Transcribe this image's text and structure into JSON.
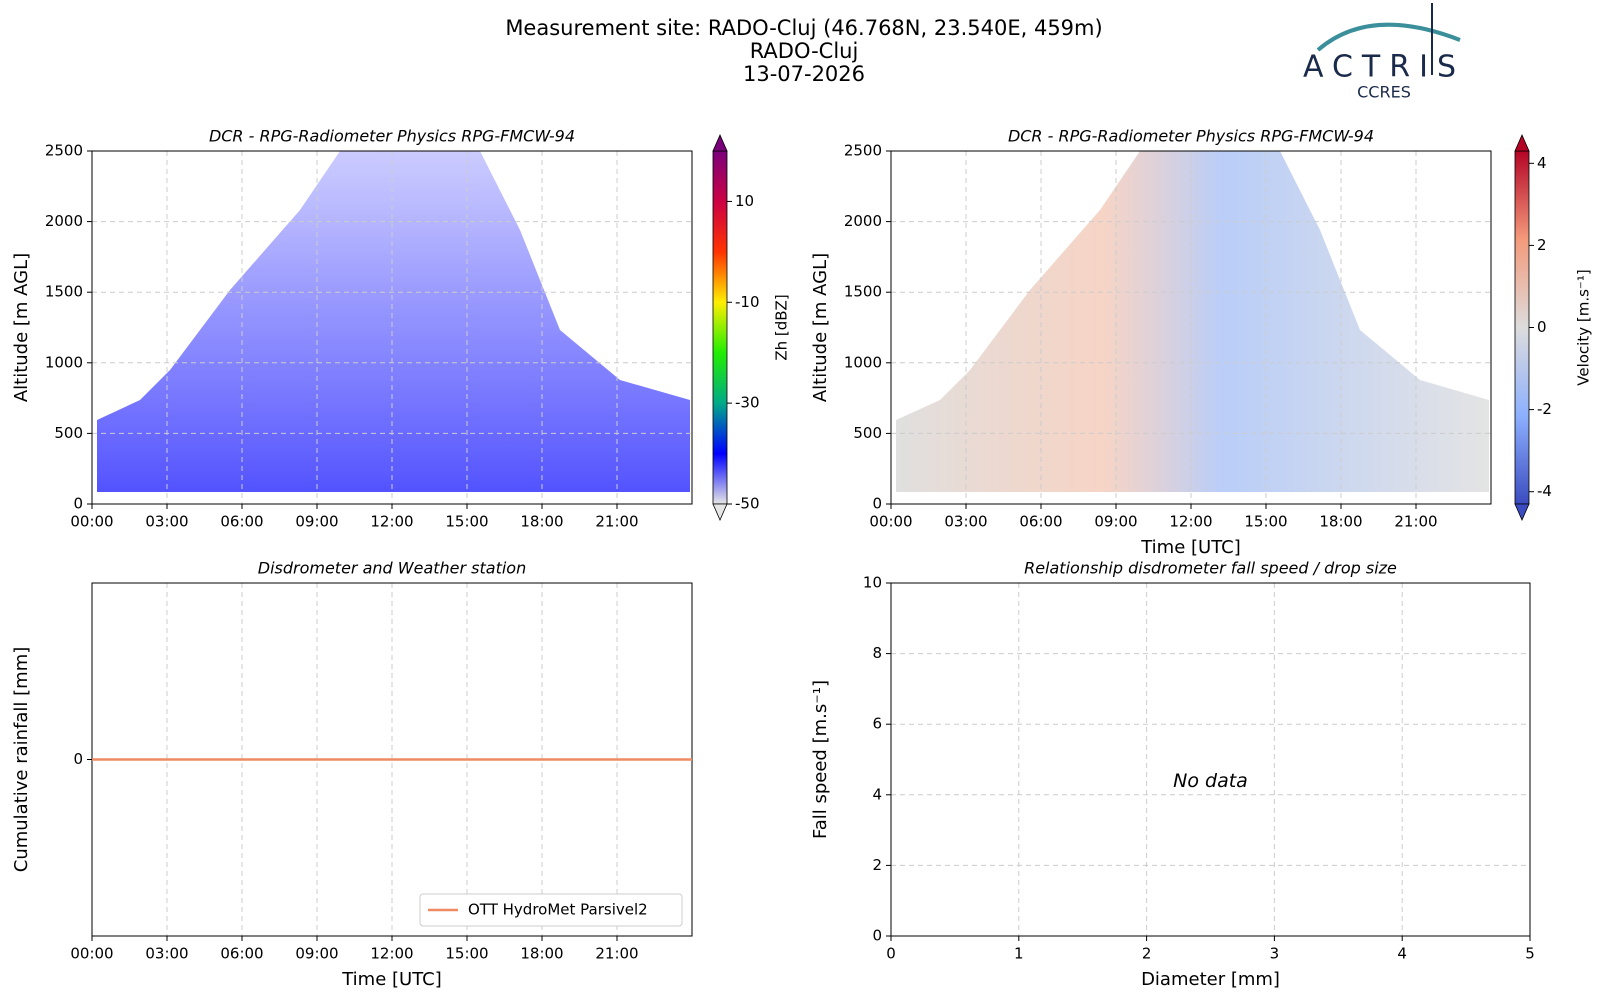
{
  "header": {
    "title": "Measurement site: RADO-Cluj (46.768N, 23.540E, 459m)",
    "subtitle": "RADO-Cluj",
    "date": "13-07-2026",
    "logo": {
      "name": "ACTRIS",
      "sub": "CCRES"
    }
  },
  "chart_data": [
    {
      "type": "heatmap",
      "title": "DCR - RPG-Radiometer Physics RPG-FMCW-94",
      "ylabel": "Altitude [m AGL]",
      "xlim": [
        0,
        24
      ],
      "xticks": [
        {
          "value": 0,
          "label": "00:00"
        },
        {
          "value": 3,
          "label": "03:00"
        },
        {
          "value": 6,
          "label": "06:00"
        },
        {
          "value": 9,
          "label": "09:00"
        },
        {
          "value": 12,
          "label": "12:00"
        },
        {
          "value": 15,
          "label": "15:00"
        },
        {
          "value": 18,
          "label": "18:00"
        },
        {
          "value": 21,
          "label": "21:00"
        }
      ],
      "ylim": [
        0,
        2500
      ],
      "yticks": [
        0,
        500,
        1000,
        1500,
        2000,
        2500
      ],
      "grid": true,
      "colorbar": {
        "label": "Zh [dBZ]",
        "lim": [
          -50,
          20
        ],
        "ticks": [
          -50,
          -30,
          -10,
          10
        ],
        "extend": "both",
        "colormap": [
          "#e6e6e6",
          "#0000ff",
          "#00aa88",
          "#22ee00",
          "#ffee00",
          "#ff3300",
          "#cc0044",
          "#7a007a"
        ]
      }
    },
    {
      "type": "heatmap",
      "title": "DCR - RPG-Radiometer Physics RPG-FMCW-94",
      "ylabel": "Altitude [m AGL]",
      "xlabel": "Time [UTC]",
      "xlim": [
        0,
        24
      ],
      "xticks": [
        {
          "value": 0,
          "label": "00:00"
        },
        {
          "value": 3,
          "label": "03:00"
        },
        {
          "value": 6,
          "label": "06:00"
        },
        {
          "value": 9,
          "label": "09:00"
        },
        {
          "value": 12,
          "label": "12:00"
        },
        {
          "value": 15,
          "label": "15:00"
        },
        {
          "value": 18,
          "label": "18:00"
        },
        {
          "value": 21,
          "label": "21:00"
        }
      ],
      "ylim": [
        0,
        2500
      ],
      "yticks": [
        0,
        500,
        1000,
        1500,
        2000,
        2500
      ],
      "grid": true,
      "colorbar": {
        "label": "Velocity [m.s⁻¹]",
        "lim": [
          -4.3,
          4.3
        ],
        "ticks": [
          -4,
          -2,
          0,
          2,
          4
        ],
        "extend": "both",
        "colormap": [
          "#3b4cc0",
          "#8db0fe",
          "#dddcdc",
          "#f49a7b",
          "#b40426"
        ]
      }
    },
    {
      "type": "line",
      "title": "Disdrometer and Weather station",
      "ylabel": "Cumulative rainfall [mm]",
      "xlabel": "Time [UTC]",
      "xlim": [
        0,
        24
      ],
      "xticks": [
        {
          "value": 0,
          "label": "00:00"
        },
        {
          "value": 3,
          "label": "03:00"
        },
        {
          "value": 6,
          "label": "06:00"
        },
        {
          "value": 9,
          "label": "09:00"
        },
        {
          "value": 12,
          "label": "12:00"
        },
        {
          "value": 15,
          "label": "15:00"
        },
        {
          "value": 18,
          "label": "18:00"
        },
        {
          "value": 21,
          "label": "21:00"
        }
      ],
      "ylim": [
        -1,
        1
      ],
      "yticks": [
        0
      ],
      "grid": true,
      "legend": "lower right",
      "x": [
        0,
        24
      ],
      "series": [
        {
          "name": "OTT HydroMet Parsivel2",
          "color": "#ef8a62",
          "values": [
            0,
            0
          ]
        }
      ]
    },
    {
      "type": "scatter",
      "title": "Relationship disdrometer fall speed / drop size",
      "ylabel": "Fall speed [m.s⁻¹]",
      "xlabel": "Diameter [mm]",
      "xlim": [
        0,
        5
      ],
      "xticks": [
        0,
        1,
        2,
        3,
        4,
        5
      ],
      "ylim": [
        0,
        10
      ],
      "yticks": [
        0,
        2,
        4,
        6,
        8,
        10
      ],
      "grid": true,
      "annotation": "No data"
    }
  ]
}
